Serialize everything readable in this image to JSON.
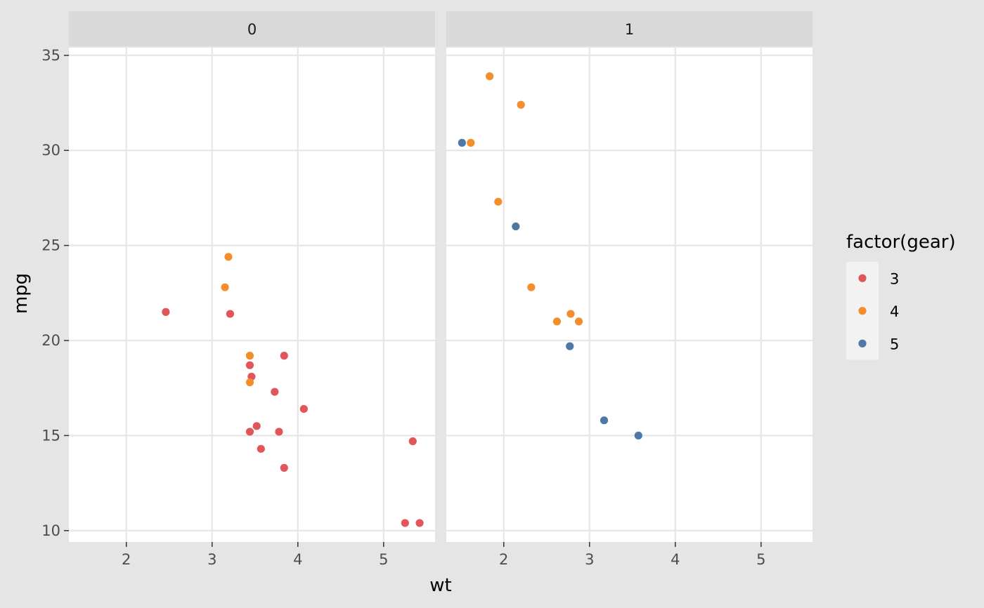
{
  "chart_data": {
    "type": "scatter",
    "facet_variable": "",
    "xlabel": "wt",
    "ylabel": "mpg",
    "xlim": [
      1.33,
      5.6
    ],
    "ylim": [
      9.4,
      35.4
    ],
    "x_ticks": [
      2,
      3,
      4,
      5
    ],
    "y_ticks": [
      10,
      15,
      20,
      25,
      30,
      35
    ],
    "grid": true,
    "legend": {
      "title": "factor(gear)",
      "position": "right",
      "entries": [
        {
          "label": "3",
          "color": "#e15759"
        },
        {
          "label": "4",
          "color": "#f28e2b"
        },
        {
          "label": "5",
          "color": "#4e79a7"
        }
      ]
    },
    "panels": [
      {
        "label": "0",
        "series": [
          {
            "name": "3",
            "color": "#e15759",
            "points": [
              [
                2.46,
                21.5
              ],
              [
                3.21,
                21.4
              ],
              [
                3.44,
                18.7
              ],
              [
                3.46,
                18.1
              ],
              [
                3.84,
                19.2
              ],
              [
                3.73,
                17.3
              ],
              [
                4.07,
                16.4
              ],
              [
                3.52,
                15.5
              ],
              [
                3.44,
                15.2
              ],
              [
                3.78,
                15.2
              ],
              [
                3.57,
                14.3
              ],
              [
                3.84,
                13.3
              ],
              [
                5.34,
                14.7
              ],
              [
                5.25,
                10.4
              ],
              [
                5.42,
                10.4
              ]
            ]
          },
          {
            "name": "4",
            "color": "#f28e2b",
            "points": [
              [
                3.19,
                24.4
              ],
              [
                3.15,
                22.8
              ],
              [
                3.44,
                19.2
              ],
              [
                3.44,
                17.8
              ]
            ]
          }
        ]
      },
      {
        "label": "1",
        "series": [
          {
            "name": "4",
            "color": "#f28e2b",
            "points": [
              [
                1.835,
                33.9
              ],
              [
                2.2,
                32.4
              ],
              [
                1.615,
                30.4
              ],
              [
                1.935,
                27.3
              ],
              [
                2.32,
                22.8
              ],
              [
                2.62,
                21.0
              ],
              [
                2.78,
                21.4
              ],
              [
                2.875,
                21.0
              ]
            ]
          },
          {
            "name": "5",
            "color": "#4e79a7",
            "points": [
              [
                1.513,
                30.4
              ],
              [
                2.14,
                26.0
              ],
              [
                2.77,
                19.7
              ],
              [
                3.17,
                15.8
              ],
              [
                3.57,
                15.0
              ]
            ]
          }
        ]
      }
    ]
  }
}
